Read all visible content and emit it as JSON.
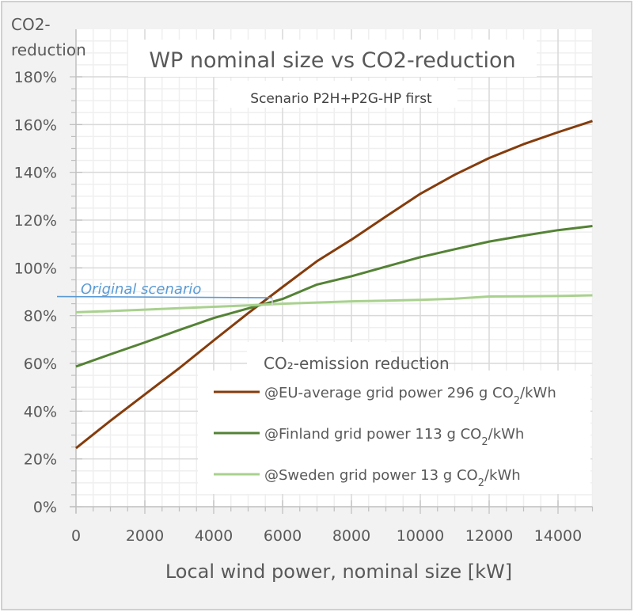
{
  "chart_data": {
    "type": "line",
    "title": "WP nominal size vs CO2-reduction",
    "subtitle": "Scenario P2H+P2G-HP first",
    "xlabel": "Local wind power, nominal size [kW]",
    "ylabel_line1": "CO2-",
    "ylabel_line2": "reduction",
    "xlim": [
      0,
      15000
    ],
    "ylim": [
      0,
      180
    ],
    "x_ticks": [
      0,
      2000,
      4000,
      6000,
      8000,
      10000,
      12000,
      14000
    ],
    "x_tick_labels": [
      "0",
      "2000",
      "4000",
      "6000",
      "8000",
      "10000",
      "12000",
      "14000"
    ],
    "y_ticks": [
      0,
      20,
      40,
      60,
      80,
      100,
      120,
      140,
      160,
      180
    ],
    "y_tick_labels": [
      "0%",
      "20%",
      "40%",
      "60%",
      "80%",
      "100%",
      "120%",
      "140%",
      "160%",
      "180%"
    ],
    "grid": true,
    "legend": {
      "title": "CO₂-emission reduction",
      "placement": "bottom-right",
      "entries": [
        {
          "prefix": "@EU-average grid power 296 g CO",
          "sub": "2",
          "suffix": "/kWh"
        },
        {
          "prefix": "@Finland grid power 113 g CO",
          "sub": "2",
          "suffix": "/kWh"
        },
        {
          "prefix": "@Sweden grid power 13 g CO",
          "sub": "2",
          "suffix": "/kWh"
        }
      ]
    },
    "x": [
      0,
      1000,
      2000,
      3000,
      4000,
      5000,
      6000,
      7000,
      8000,
      9000,
      10000,
      11000,
      12000,
      13000,
      14000,
      15000
    ],
    "series": [
      {
        "name": "@EU-average grid power 296 g CO2/kWh",
        "color": "#843c0c",
        "values": [
          24.5,
          36,
          47,
          58,
          69.6,
          81,
          92,
          102.8,
          111.8,
          121.5,
          131,
          139,
          146,
          151.8,
          156.8,
          161.5
        ]
      },
      {
        "name": "@Finland grid power 113 g CO2/kWh",
        "color": "#548235",
        "values": [
          58.7,
          63.8,
          68.8,
          74,
          79,
          83,
          87,
          93,
          96.5,
          100.5,
          104.5,
          107.8,
          111,
          113.5,
          115.8,
          117.5
        ]
      },
      {
        "name": "@Sweden grid power 13 g CO2/kWh",
        "color": "#a9d18e",
        "values": [
          81.4,
          81.9,
          82.5,
          83.1,
          83.7,
          84.3,
          85,
          85.5,
          86,
          86.3,
          86.6,
          87.1,
          88,
          88.1,
          88.2,
          88.5
        ]
      }
    ],
    "annotations": [
      {
        "text": "Original scenario",
        "x_end": 5700,
        "y": 88,
        "color": "#5b9bd5"
      }
    ]
  }
}
